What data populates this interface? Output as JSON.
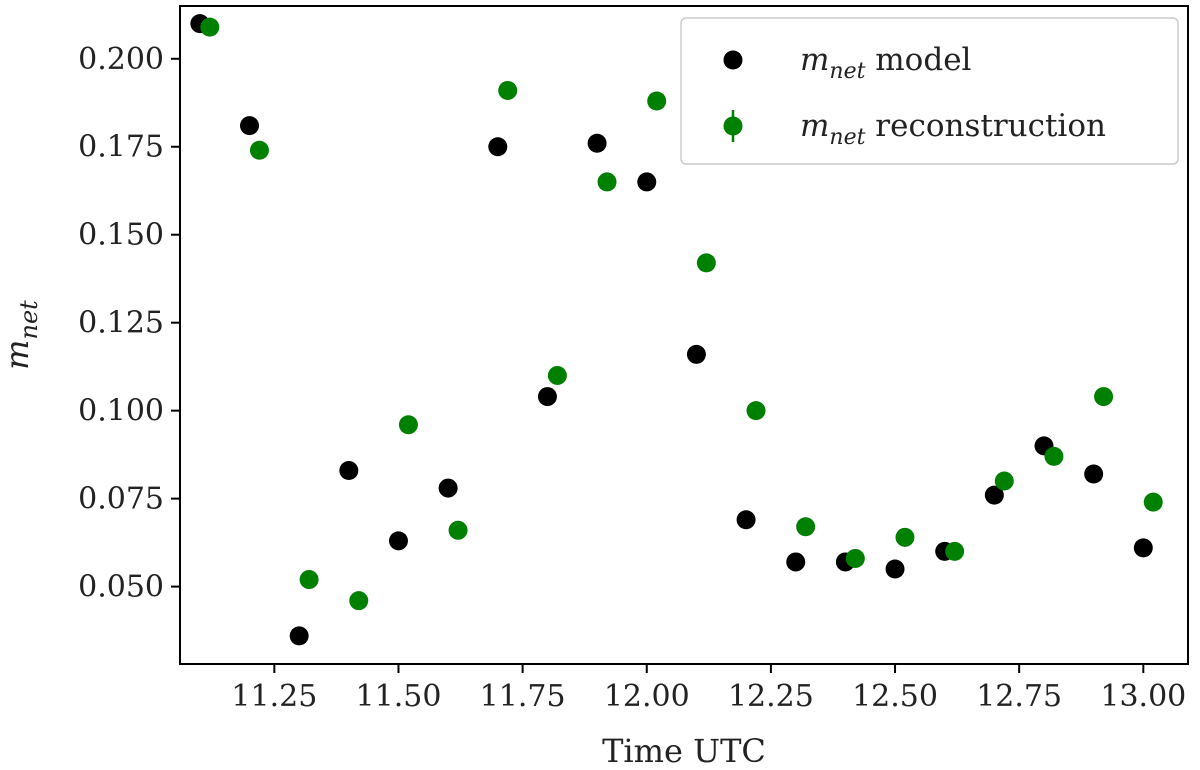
{
  "chart_data": {
    "type": "scatter",
    "xlabel": "Time UTC",
    "ylabel": {
      "base": "m",
      "sub": "net"
    },
    "xlim": [
      11.06,
      13.09
    ],
    "ylim": [
      0.028,
      0.215
    ],
    "xticks": [
      11.25,
      11.5,
      11.75,
      12.0,
      12.25,
      12.5,
      12.75,
      13.0
    ],
    "xtick_labels": [
      "11.25",
      "11.50",
      "11.75",
      "12.00",
      "12.25",
      "12.50",
      "12.75",
      "13.00"
    ],
    "yticks": [
      0.05,
      0.075,
      0.1,
      0.125,
      0.15,
      0.175,
      0.2
    ],
    "ytick_labels": [
      "0.050",
      "0.075",
      "0.100",
      "0.125",
      "0.150",
      "0.175",
      "0.200"
    ],
    "legend_position": "top-right",
    "series": [
      {
        "name_math": "m",
        "name_sub": "net",
        "name_rest": " model",
        "color": "#000000",
        "marker": "circle",
        "x": [
          11.1,
          11.2,
          11.3,
          11.4,
          11.5,
          11.6,
          11.7,
          11.8,
          11.9,
          12.0,
          12.1,
          12.2,
          12.3,
          12.4,
          12.5,
          12.6,
          12.7,
          12.8,
          12.9,
          13.0
        ],
        "y": [
          0.21,
          0.181,
          0.036,
          0.083,
          0.063,
          0.078,
          0.175,
          0.104,
          0.176,
          0.165,
          0.116,
          0.069,
          0.057,
          0.057,
          0.055,
          0.06,
          0.076,
          0.09,
          0.082,
          0.061
        ]
      },
      {
        "name_math": "m",
        "name_sub": "net",
        "name_rest": " reconstruction",
        "color": "#008000",
        "marker": "circle-errorbar",
        "x": [
          11.12,
          11.22,
          11.32,
          11.42,
          11.52,
          11.62,
          11.72,
          11.82,
          11.92,
          12.02,
          12.12,
          12.22,
          12.32,
          12.42,
          12.52,
          12.62,
          12.72,
          12.82,
          12.92,
          13.02
        ],
        "y": [
          0.209,
          0.174,
          0.052,
          0.046,
          0.096,
          0.066,
          0.191,
          0.11,
          0.165,
          0.188,
          0.142,
          0.1,
          0.067,
          0.058,
          0.064,
          0.06,
          0.08,
          0.087,
          0.104,
          0.074
        ]
      }
    ]
  }
}
